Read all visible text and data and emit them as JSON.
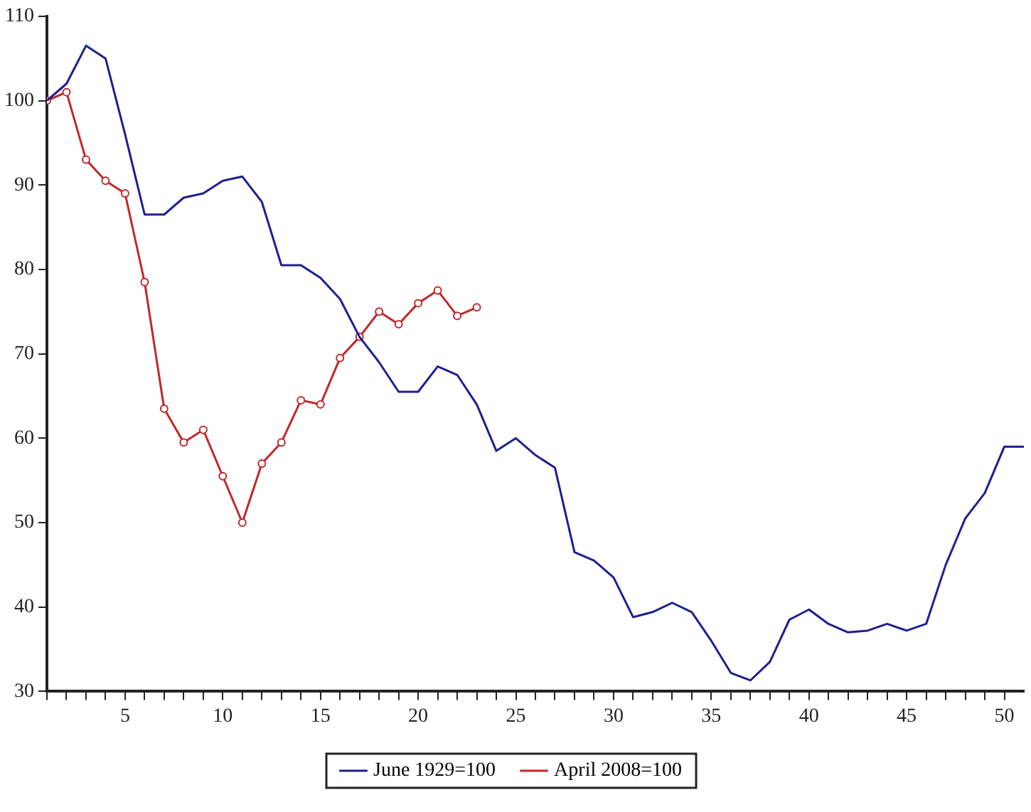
{
  "chart_data": {
    "type": "line",
    "x": [
      1,
      2,
      3,
      4,
      5,
      6,
      7,
      8,
      9,
      10,
      11,
      12,
      13,
      14,
      15,
      16,
      17,
      18,
      19,
      20,
      21,
      22,
      23,
      24,
      25,
      26,
      27,
      28,
      29,
      30,
      31,
      32,
      33,
      34,
      35,
      36,
      37,
      38,
      39,
      40,
      41,
      42,
      43,
      44,
      45,
      46,
      47,
      48,
      49,
      50,
      51
    ],
    "series": [
      {
        "name": "June 1929=100",
        "color": "#1f1f8f",
        "marker": "none",
        "values": [
          100,
          102,
          106.5,
          105,
          96,
          86.5,
          86.5,
          88.5,
          89,
          90.5,
          91,
          88,
          80.5,
          80.5,
          79,
          76.5,
          72,
          69,
          65.5,
          65.5,
          68.5,
          67.5,
          64,
          58.5,
          60,
          58,
          56.5,
          46.5,
          45.5,
          43.5,
          38.8,
          39.4,
          40.5,
          39.4,
          36,
          32.2,
          31.3,
          33.5,
          38.5,
          39.7,
          38,
          37,
          37.2,
          38,
          37.2,
          38,
          45,
          50.5,
          53.5,
          59,
          59
        ]
      },
      {
        "name": "April 2008=100",
        "color": "#c0282a",
        "marker": "circle",
        "values": [
          100,
          101,
          93,
          90.5,
          89,
          78.5,
          63.5,
          59.5,
          61,
          55.5,
          50,
          57,
          59.5,
          64.5,
          64,
          69.5,
          72,
          75,
          73.5,
          76,
          77.5,
          74.5,
          75.5,
          null,
          null,
          null,
          null,
          null,
          null,
          null,
          null,
          null,
          null,
          null,
          null,
          null,
          null,
          null,
          null,
          null,
          null,
          null,
          null,
          null,
          null,
          null,
          null,
          null,
          null,
          null,
          null
        ]
      }
    ],
    "xlim": [
      1,
      51
    ],
    "ylim": [
      30,
      110
    ],
    "xticks": [
      {
        "value": 1,
        "label": null
      },
      {
        "value": 2,
        "label": null
      },
      {
        "value": 3,
        "label": null
      },
      {
        "value": 4,
        "label": null
      },
      5,
      {
        "value": 6,
        "label": null
      },
      {
        "value": 7,
        "label": null
      },
      {
        "value": 8,
        "label": null
      },
      {
        "value": 9,
        "label": null
      },
      10,
      {
        "value": 11,
        "label": null
      },
      {
        "value": 12,
        "label": null
      },
      {
        "value": 13,
        "label": null
      },
      {
        "value": 14,
        "label": null
      },
      15,
      {
        "value": 16,
        "label": null
      },
      {
        "value": 17,
        "label": null
      },
      {
        "value": 18,
        "label": null
      },
      {
        "value": 19,
        "label": null
      },
      20,
      {
        "value": 21,
        "label": null
      },
      {
        "value": 22,
        "label": null
      },
      {
        "value": 23,
        "label": null
      },
      {
        "value": 24,
        "label": null
      },
      25,
      {
        "value": 26,
        "label": null
      },
      {
        "value": 27,
        "label": null
      },
      {
        "value": 28,
        "label": null
      },
      {
        "value": 29,
        "label": null
      },
      30,
      {
        "value": 31,
        "label": null
      },
      {
        "value": 32,
        "label": null
      },
      {
        "value": 33,
        "label": null
      },
      {
        "value": 34,
        "label": null
      },
      35,
      {
        "value": 36,
        "label": null
      },
      {
        "value": 37,
        "label": null
      },
      {
        "value": 38,
        "label": null
      },
      {
        "value": 39,
        "label": null
      },
      40,
      {
        "value": 41,
        "label": null
      },
      {
        "value": 42,
        "label": null
      },
      {
        "value": 43,
        "label": null
      },
      {
        "value": 44,
        "label": null
      },
      45,
      {
        "value": 46,
        "label": null
      },
      {
        "value": 47,
        "label": null
      },
      {
        "value": 48,
        "label": null
      },
      {
        "value": 49,
        "label": null
      },
      50
    ],
    "yticks": [
      30,
      40,
      50,
      60,
      70,
      80,
      90,
      100,
      110
    ],
    "grid": false,
    "legend": "bottom",
    "line_style": "solid"
  }
}
